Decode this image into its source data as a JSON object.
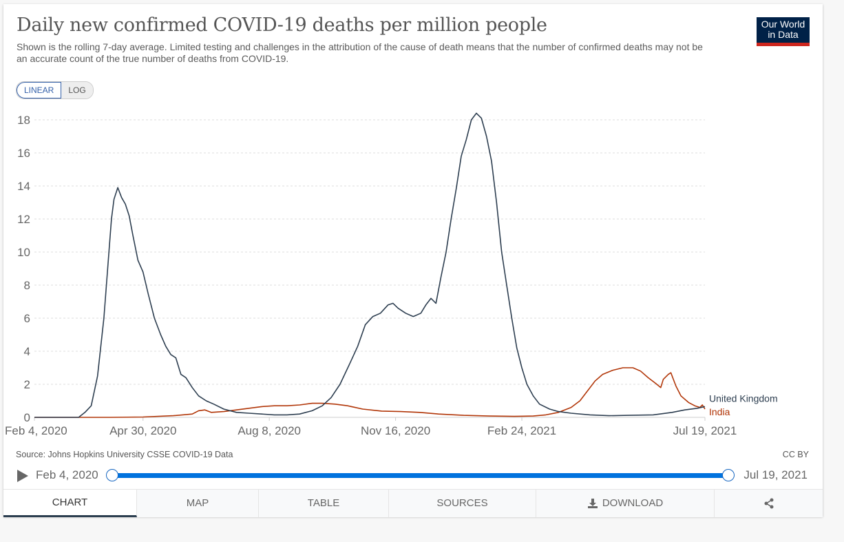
{
  "header": {
    "title": "Daily new confirmed COVID-19 deaths per million people",
    "subtitle": "Shown is the rolling 7-day average. Limited testing and challenges in the attribution of the cause of death means that the number of confirmed deaths may not be an accurate count of the true number of deaths from COVID-19.",
    "logo_line1": "Our World",
    "logo_line2": "in Data"
  },
  "scale_toggle": {
    "options": [
      "LINEAR",
      "LOG"
    ],
    "selected": "LINEAR"
  },
  "footer": {
    "source": "Source: Johns Hopkins University CSSE COVID-19 Data",
    "license": "CC BY"
  },
  "timeline": {
    "start_label": "Feb 4, 2020",
    "end_label": "Jul 19, 2021",
    "range_fraction": [
      0,
      1
    ],
    "play_icon": "play-icon"
  },
  "tabs": [
    {
      "label": "CHART",
      "active": true
    },
    {
      "label": "MAP",
      "active": false
    },
    {
      "label": "TABLE",
      "active": false
    },
    {
      "label": "SOURCES",
      "active": false
    },
    {
      "label": "DOWNLOAD",
      "active": false,
      "icon": "download-icon"
    },
    {
      "label": "",
      "active": false,
      "icon": "share-icon"
    }
  ],
  "colors": {
    "uk": "#2d3e50",
    "india": "#b13507",
    "grid": "#dddddd",
    "accent": "#0072de",
    "logo_bg": "#002147",
    "logo_bar": "#ce261e"
  },
  "chart_data": {
    "type": "line",
    "title": "Daily new confirmed COVID-19 deaths per million people",
    "xlabel": "",
    "ylabel": "",
    "ylim": [
      0,
      18
    ],
    "yticks": [
      0,
      2,
      4,
      6,
      8,
      10,
      12,
      14,
      16,
      18
    ],
    "x_start": "2020-02-04",
    "x_end": "2021-07-19",
    "xticks": [
      {
        "label": "Feb 4, 2020",
        "day": 0
      },
      {
        "label": "Apr 30, 2020",
        "day": 86
      },
      {
        "label": "Aug 8, 2020",
        "day": 186
      },
      {
        "label": "Nov 16, 2020",
        "day": 286
      },
      {
        "label": "Feb 24, 2021",
        "day": 386
      },
      {
        "label": "Jul 19, 2021",
        "day": 531
      }
    ],
    "grid": true,
    "legend": "right-end labels",
    "x_unit": "days since Feb 4, 2020",
    "series": [
      {
        "name": "United Kingdom",
        "points": [
          [
            0,
            0
          ],
          [
            35,
            0
          ],
          [
            40,
            0.3
          ],
          [
            45,
            0.7
          ],
          [
            50,
            2.5
          ],
          [
            55,
            6
          ],
          [
            58,
            9
          ],
          [
            61,
            12
          ],
          [
            63,
            13.2
          ],
          [
            66,
            13.9
          ],
          [
            69,
            13.3
          ],
          [
            72,
            12.9
          ],
          [
            75,
            12.2
          ],
          [
            78,
            11
          ],
          [
            82,
            9.5
          ],
          [
            86,
            8.8
          ],
          [
            90,
            7.5
          ],
          [
            95,
            6
          ],
          [
            100,
            5
          ],
          [
            104,
            4.3
          ],
          [
            108,
            3.8
          ],
          [
            112,
            3.6
          ],
          [
            116,
            2.6
          ],
          [
            120,
            2.4
          ],
          [
            125,
            1.8
          ],
          [
            130,
            1.3
          ],
          [
            136,
            1
          ],
          [
            142,
            0.8
          ],
          [
            150,
            0.5
          ],
          [
            160,
            0.3
          ],
          [
            170,
            0.25
          ],
          [
            180,
            0.2
          ],
          [
            190,
            0.15
          ],
          [
            200,
            0.15
          ],
          [
            210,
            0.2
          ],
          [
            220,
            0.4
          ],
          [
            228,
            0.7
          ],
          [
            235,
            1.2
          ],
          [
            242,
            2
          ],
          [
            250,
            3.3
          ],
          [
            256,
            4.3
          ],
          [
            262,
            5.6
          ],
          [
            268,
            6.1
          ],
          [
            274,
            6.3
          ],
          [
            280,
            6.8
          ],
          [
            284,
            6.9
          ],
          [
            288,
            6.6
          ],
          [
            294,
            6.3
          ],
          [
            300,
            6.1
          ],
          [
            306,
            6.3
          ],
          [
            310,
            6.8
          ],
          [
            314,
            7.2
          ],
          [
            318,
            6.9
          ],
          [
            322,
            8.5
          ],
          [
            326,
            10
          ],
          [
            330,
            12
          ],
          [
            334,
            13.8
          ],
          [
            338,
            15.8
          ],
          [
            342,
            16.8
          ],
          [
            346,
            18
          ],
          [
            350,
            18.4
          ],
          [
            354,
            18.1
          ],
          [
            358,
            17
          ],
          [
            362,
            15.5
          ],
          [
            366,
            13
          ],
          [
            370,
            10
          ],
          [
            374,
            8
          ],
          [
            378,
            6
          ],
          [
            382,
            4.2
          ],
          [
            386,
            3
          ],
          [
            390,
            2
          ],
          [
            395,
            1.3
          ],
          [
            400,
            0.8
          ],
          [
            408,
            0.5
          ],
          [
            415,
            0.35
          ],
          [
            425,
            0.25
          ],
          [
            440,
            0.15
          ],
          [
            455,
            0.1
          ],
          [
            470,
            0.12
          ],
          [
            490,
            0.15
          ],
          [
            505,
            0.3
          ],
          [
            515,
            0.45
          ],
          [
            525,
            0.55
          ],
          [
            531,
            0.65
          ]
        ]
      },
      {
        "name": "India",
        "points": [
          [
            0,
            0
          ],
          [
            60,
            0
          ],
          [
            86,
            0.02
          ],
          [
            110,
            0.1
          ],
          [
            125,
            0.2
          ],
          [
            130,
            0.4
          ],
          [
            135,
            0.45
          ],
          [
            140,
            0.3
          ],
          [
            150,
            0.35
          ],
          [
            160,
            0.45
          ],
          [
            170,
            0.55
          ],
          [
            180,
            0.65
          ],
          [
            190,
            0.7
          ],
          [
            200,
            0.7
          ],
          [
            210,
            0.75
          ],
          [
            220,
            0.85
          ],
          [
            228,
            0.85
          ],
          [
            238,
            0.8
          ],
          [
            248,
            0.7
          ],
          [
            260,
            0.5
          ],
          [
            275,
            0.38
          ],
          [
            290,
            0.35
          ],
          [
            305,
            0.3
          ],
          [
            320,
            0.2
          ],
          [
            340,
            0.12
          ],
          [
            360,
            0.08
          ],
          [
            380,
            0.06
          ],
          [
            395,
            0.08
          ],
          [
            405,
            0.15
          ],
          [
            415,
            0.3
          ],
          [
            425,
            0.6
          ],
          [
            432,
            1
          ],
          [
            438,
            1.6
          ],
          [
            444,
            2.2
          ],
          [
            450,
            2.6
          ],
          [
            458,
            2.85
          ],
          [
            466,
            3
          ],
          [
            474,
            3
          ],
          [
            480,
            2.8
          ],
          [
            486,
            2.4
          ],
          [
            492,
            2.05
          ],
          [
            496,
            1.8
          ],
          [
            498,
            2.3
          ],
          [
            502,
            2.6
          ],
          [
            504,
            2.7
          ],
          [
            508,
            1.9
          ],
          [
            512,
            1.3
          ],
          [
            518,
            0.9
          ],
          [
            523,
            0.7
          ],
          [
            527,
            0.6
          ],
          [
            529,
            0.75
          ],
          [
            531,
            0.5
          ]
        ]
      }
    ]
  }
}
